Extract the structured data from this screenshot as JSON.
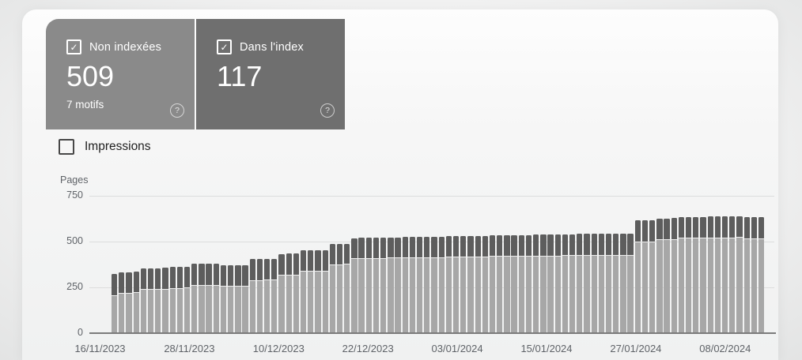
{
  "cards": [
    {
      "label": "Non indexées",
      "value": "509",
      "sub": "7 motifs",
      "checked": true,
      "bg": "#8a8a8a"
    },
    {
      "label": "Dans l'index",
      "value": "117",
      "sub": "",
      "checked": true,
      "bg": "#6f6f6f"
    }
  ],
  "icons": {
    "check": "✓",
    "help": "?"
  },
  "impressions_toggle": {
    "label": "Impressions",
    "checked": false
  },
  "colors": {
    "card_non_indexed_bg": "#8a8a8a",
    "card_indexed_bg": "#6f6f6f",
    "bar_non_indexed": "#a7a7a7",
    "bar_indexed": "#5d5d5d",
    "axis_text": "#5f6368",
    "gridline": "#dcdddd",
    "zero_line": "#7b7b7b"
  },
  "chart_data": {
    "type": "bar",
    "stacked": true,
    "title": "",
    "xlabel": "",
    "ylabel": "Pages",
    "ylim": [
      0,
      750
    ],
    "y_ticks": [
      750,
      500,
      250,
      0
    ],
    "grid": true,
    "legend_position": "none",
    "x_start_date": "16/11/2023",
    "x_tick_labels": [
      "16/11/2023",
      "28/11/2023",
      "10/12/2023",
      "22/12/2023",
      "03/01/2024",
      "15/01/2024",
      "27/01/2024",
      "08/02/2024"
    ],
    "series": [
      {
        "name": "Non indexées",
        "color": "#a7a7a7",
        "values": [
          200,
          212,
          212,
          214,
          232,
          232,
          232,
          234,
          237,
          237,
          240,
          254,
          254,
          256,
          256,
          248,
          248,
          250,
          250,
          282,
          282,
          284,
          284,
          310,
          312,
          312,
          330,
          330,
          332,
          332,
          368,
          368,
          369,
          400,
          402,
          402,
          403,
          403,
          404,
          404,
          405,
          405,
          406,
          406,
          407,
          407,
          408,
          408,
          409,
          409,
          410,
          411,
          412,
          412,
          413,
          413,
          414,
          414,
          415,
          415,
          416,
          416,
          417,
          417,
          417,
          418,
          418,
          418,
          418,
          419,
          419,
          419,
          491,
          491,
          492,
          505,
          505,
          506,
          512,
          512,
          513,
          513,
          514,
          514,
          515,
          515,
          516,
          510,
          510,
          509
        ]
      },
      {
        "name": "Dans l'index",
        "color": "#5d5d5d",
        "values": [
          113,
          113,
          113,
          113,
          114,
          114,
          114,
          114,
          115,
          115,
          115,
          116,
          116,
          116,
          116,
          114,
          114,
          114,
          114,
          114,
          114,
          114,
          114,
          114,
          114,
          114,
          112,
          112,
          112,
          112,
          110,
          110,
          110,
          110,
          110,
          110,
          110,
          110,
          110,
          110,
          111,
          111,
          111,
          111,
          111,
          111,
          112,
          112,
          112,
          112,
          112,
          112,
          113,
          113,
          113,
          113,
          114,
          114,
          114,
          114,
          115,
          115,
          115,
          115,
          116,
          116,
          116,
          116,
          116,
          115,
          115,
          115,
          115,
          115,
          115,
          113,
          113,
          113,
          114,
          114,
          114,
          114,
          114,
          114,
          114,
          114,
          114,
          116,
          116,
          117
        ]
      }
    ]
  }
}
